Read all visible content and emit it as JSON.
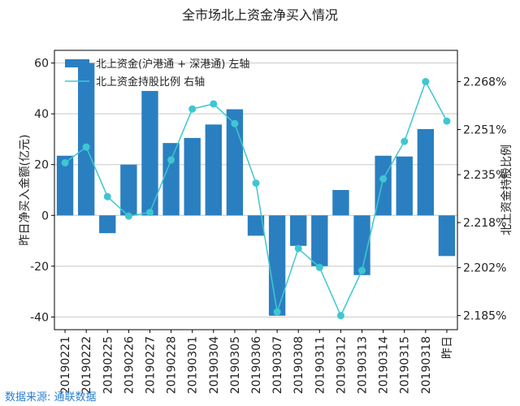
{
  "chart_data": {
    "type": "bar",
    "title": "全市场北上资金净买入情况",
    "categories": [
      "20190221",
      "20190222",
      "20190225",
      "20190226",
      "20190227",
      "20190228",
      "20190301",
      "20190304",
      "20190305",
      "20190306",
      "20190307",
      "20190308",
      "20190311",
      "20190312",
      "20190313",
      "20190314",
      "20190315",
      "20190318",
      "昨日"
    ],
    "series": [
      {
        "name": "北上资金(沪港通 + 深港通) 左轴",
        "type": "bar",
        "axis": "left",
        "color": "#2a7fc1",
        "values": [
          23.5,
          60,
          -7,
          20,
          49,
          28.5,
          30.5,
          35.8,
          41.8,
          -8,
          -39.5,
          -12,
          -20,
          10,
          -23.5,
          23.5,
          23.2,
          34,
          -16
        ]
      },
      {
        "name": "北上资金持股比例 右轴",
        "type": "line",
        "axis": "right",
        "color": "#3ec7d0",
        "values": [
          2.2392,
          2.2448,
          2.2272,
          2.2203,
          2.2216,
          2.2402,
          2.2583,
          2.2601,
          2.2531,
          2.232,
          2.1863,
          2.2088,
          2.2021,
          2.185,
          2.201,
          2.2335,
          2.2468,
          2.268,
          2.254
        ]
      }
    ],
    "ylabel_left": "昨日净买入金额(亿元)",
    "ylabel_right": "北上资金持股比例",
    "ylim_left": [
      -45,
      65
    ],
    "yticks_left": [
      "-40",
      "-20",
      "0",
      "20",
      "40",
      "60"
    ],
    "ylim_right": [
      2.18,
      2.2791
    ],
    "yticks_right_values": [
      2.185,
      2.202,
      2.218,
      2.235,
      2.251,
      2.268
    ],
    "yticks_right": [
      "2.185%",
      "2.202%",
      "2.218%",
      "2.235%",
      "2.251%",
      "2.268%"
    ],
    "grid": true,
    "legend": "top-left"
  },
  "source_text": "数据来源: 通联数据"
}
